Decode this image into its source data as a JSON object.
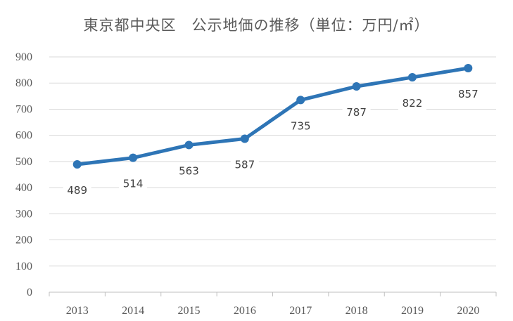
{
  "chart_data": {
    "type": "line",
    "title": "東京都中央区　公示地価の推移（単位：万円/㎡）",
    "categories": [
      "2013",
      "2014",
      "2015",
      "2016",
      "2017",
      "2018",
      "2019",
      "2020"
    ],
    "series": [
      {
        "values": [
          489,
          514,
          563,
          587,
          735,
          787,
          822,
          857
        ]
      }
    ],
    "yticks": [
      "0",
      "100",
      "200",
      "300",
      "400",
      "500",
      "600",
      "700",
      "800",
      "900"
    ],
    "ylim": [
      0,
      900
    ],
    "grid": true,
    "legend": "none",
    "data_labels": true,
    "line_color": "#2E75B6"
  }
}
